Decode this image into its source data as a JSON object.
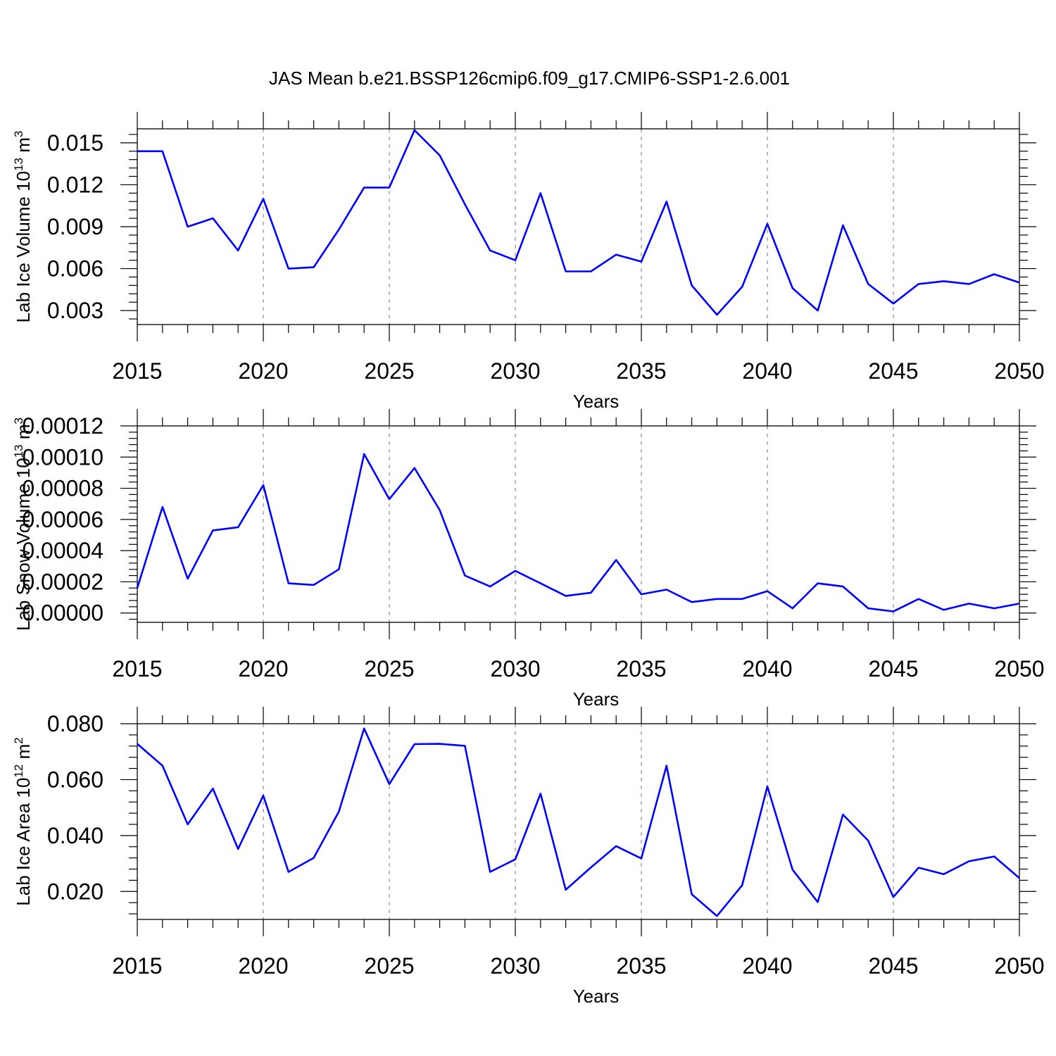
{
  "title": "JAS Mean b.e21.BSSP126cmip6.f09_g17.CMIP6-SSP1-2.6.001",
  "colors": {
    "line": "#0000ff",
    "grid": "#8c8c8c",
    "axis": "#000000"
  },
  "chart_data": [
    {
      "type": "line",
      "ylabel": "Lab Ice Volume 10",
      "ylabel_exp": "13",
      "ylabel_unit": " m",
      "ylabel_unit_exp": "3",
      "xlabel": "Years",
      "xlim": [
        2015,
        2050
      ],
      "ylim": [
        0.002,
        0.016
      ],
      "yticks": [
        0.003,
        0.006,
        0.009,
        0.012,
        0.015
      ],
      "ytick_labels": [
        "0.003",
        "0.006",
        "0.009",
        "0.012",
        "0.015"
      ],
      "xticks": [
        2015,
        2020,
        2025,
        2030,
        2035,
        2040,
        2045,
        2050
      ],
      "xtick_labels": [
        "2015",
        "2020",
        "2025",
        "2030",
        "2035",
        "2040",
        "2045",
        "2050"
      ],
      "grid_x": [
        2020,
        2025,
        2030,
        2035,
        2040,
        2045
      ],
      "series": [
        {
          "name": "Lab Ice Volume",
          "x": [
            2015,
            2016,
            2017,
            2018,
            2019,
            2020,
            2021,
            2022,
            2023,
            2024,
            2025,
            2026,
            2027,
            2028,
            2029,
            2030,
            2031,
            2032,
            2033,
            2034,
            2035,
            2036,
            2037,
            2038,
            2039,
            2040,
            2041,
            2042,
            2043,
            2044,
            2045,
            2046,
            2047,
            2048,
            2049,
            2050
          ],
          "values": [
            0.0144,
            0.0144,
            0.009,
            0.0096,
            0.0073,
            0.011,
            0.006,
            0.0061,
            0.0088,
            0.0118,
            0.0118,
            0.0159,
            0.0141,
            0.0106,
            0.0073,
            0.0066,
            0.0114,
            0.0058,
            0.0058,
            0.007,
            0.0065,
            0.0108,
            0.0048,
            0.0027,
            0.0047,
            0.0092,
            0.0046,
            0.003,
            0.0091,
            0.0049,
            0.0035,
            0.0049,
            0.0051,
            0.0049,
            0.0056,
            0.005
          ]
        }
      ]
    },
    {
      "type": "line",
      "ylabel": "Lab Snow Volume 10",
      "ylabel_exp": "13",
      "ylabel_unit": " m",
      "ylabel_unit_exp": "3",
      "xlabel": "Years",
      "xlim": [
        2015,
        2050
      ],
      "ylim": [
        -6e-06,
        0.00012
      ],
      "yticks": [
        0.0,
        2e-05,
        4e-05,
        6e-05,
        8e-05,
        0.0001,
        0.00012
      ],
      "ytick_labels": [
        "0.00000",
        "0.00002",
        "0.00004",
        "0.00006",
        "0.00008",
        "0.00010",
        "0.00012"
      ],
      "xticks": [
        2015,
        2020,
        2025,
        2030,
        2035,
        2040,
        2045,
        2050
      ],
      "xtick_labels": [
        "2015",
        "2020",
        "2025",
        "2030",
        "2035",
        "2040",
        "2045",
        "2050"
      ],
      "grid_x": [
        2020,
        2025,
        2030,
        2035,
        2040,
        2045
      ],
      "series": [
        {
          "name": "Lab Snow Volume",
          "x": [
            2015,
            2016,
            2017,
            2018,
            2019,
            2020,
            2021,
            2022,
            2023,
            2024,
            2025,
            2026,
            2027,
            2028,
            2029,
            2030,
            2031,
            2032,
            2033,
            2034,
            2035,
            2036,
            2037,
            2038,
            2039,
            2040,
            2041,
            2042,
            2043,
            2044,
            2045,
            2046,
            2047,
            2048,
            2049,
            2050
          ],
          "values": [
            1.6e-05,
            6.8e-05,
            2.2e-05,
            5.3e-05,
            5.5e-05,
            8.2e-05,
            1.9e-05,
            1.8e-05,
            2.8e-05,
            0.000102,
            7.3e-05,
            9.3e-05,
            6.6e-05,
            2.4e-05,
            1.7e-05,
            2.7e-05,
            1.9e-05,
            1.1e-05,
            1.3e-05,
            3.4e-05,
            1.2e-05,
            1.5e-05,
            7e-06,
            9e-06,
            9e-06,
            1.4e-05,
            3e-06,
            1.9e-05,
            1.7e-05,
            3e-06,
            1e-06,
            9e-06,
            2e-06,
            6e-06,
            3e-06,
            6e-06
          ]
        }
      ]
    },
    {
      "type": "line",
      "ylabel": "Lab Ice Area 10",
      "ylabel_exp": "12",
      "ylabel_unit": " m",
      "ylabel_unit_exp": "2",
      "xlabel": "Years",
      "xlim": [
        2015,
        2050
      ],
      "ylim": [
        0.01,
        0.08
      ],
      "yticks": [
        0.02,
        0.04,
        0.06,
        0.08
      ],
      "ytick_labels": [
        "0.020",
        "0.040",
        "0.060",
        "0.080"
      ],
      "xticks": [
        2015,
        2020,
        2025,
        2030,
        2035,
        2040,
        2045,
        2050
      ],
      "xtick_labels": [
        "2015",
        "2020",
        "2025",
        "2030",
        "2035",
        "2040",
        "2045",
        "2050"
      ],
      "grid_x": [
        2020,
        2025,
        2030,
        2035,
        2040,
        2045
      ],
      "series": [
        {
          "name": "Lab Ice Area",
          "x": [
            2015,
            2016,
            2017,
            2018,
            2019,
            2020,
            2021,
            2022,
            2023,
            2024,
            2025,
            2026,
            2027,
            2028,
            2029,
            2030,
            2031,
            2032,
            2033,
            2034,
            2035,
            2036,
            2037,
            2038,
            2039,
            2040,
            2041,
            2042,
            2043,
            2044,
            2045,
            2046,
            2047,
            2048,
            2049,
            2050
          ],
          "values": [
            0.0728,
            0.065,
            0.044,
            0.0568,
            0.0352,
            0.0543,
            0.027,
            0.032,
            0.0486,
            0.0783,
            0.0584,
            0.0727,
            0.0728,
            0.0721,
            0.027,
            0.0315,
            0.055,
            0.0206,
            0.0286,
            0.0362,
            0.0318,
            0.065,
            0.019,
            0.0112,
            0.0222,
            0.0576,
            0.0278,
            0.0162,
            0.0475,
            0.0382,
            0.018,
            0.0285,
            0.0262,
            0.0308,
            0.0325,
            0.0248
          ]
        }
      ]
    }
  ]
}
